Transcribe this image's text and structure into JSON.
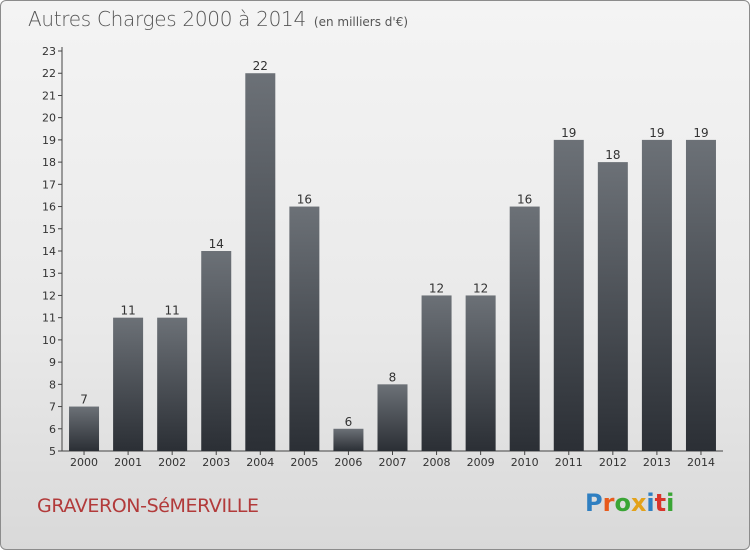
{
  "title": {
    "main": "Autres Charges 2000 à 2014",
    "sub": "(en milliers d'€)"
  },
  "location": "GRAVERON-SéMERVILLE",
  "logo": {
    "text": "Proxiti",
    "letter_colors": [
      "#2f7fc1",
      "#e85b1c",
      "#3aa535",
      "#e3a21a",
      "#2f7fc1",
      "#d9342b",
      "#3aa535"
    ]
  },
  "chart_data": {
    "type": "bar",
    "title": "Autres Charges 2000 à 2014",
    "subtitle": "(en milliers d'€)",
    "categories": [
      "2000",
      "2001",
      "2002",
      "2003",
      "2004",
      "2005",
      "2006",
      "2007",
      "2008",
      "2009",
      "2010",
      "2011",
      "2012",
      "2013",
      "2014"
    ],
    "values": [
      7,
      11,
      11,
      14,
      22,
      16,
      6,
      8,
      12,
      12,
      16,
      19,
      18,
      19,
      19
    ],
    "ylim": [
      5,
      23
    ],
    "yticks": [
      5,
      6,
      7,
      8,
      9,
      10,
      11,
      12,
      13,
      14,
      15,
      16,
      17,
      18,
      19,
      20,
      21,
      22,
      23
    ],
    "grid": false,
    "bar_color_top": "#6c7177",
    "bar_color_bottom": "#2b2f35",
    "axis_color": "#444444"
  }
}
